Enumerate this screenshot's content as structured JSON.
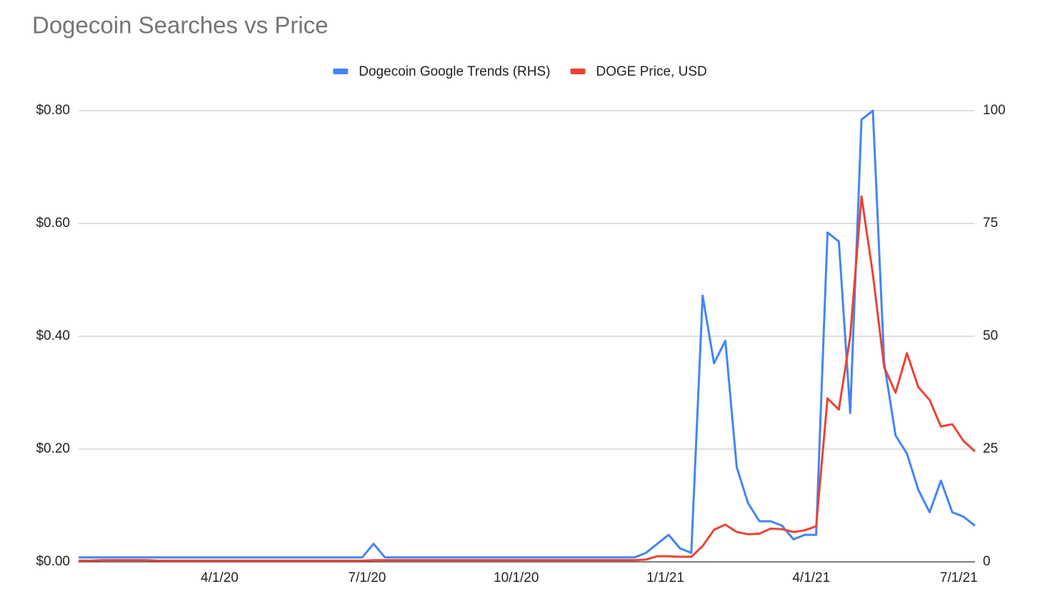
{
  "chart_data": {
    "type": "line",
    "title": "Dogecoin Searches vs Price",
    "x": [
      "1/5/20",
      "1/12/20",
      "1/19/20",
      "1/26/20",
      "2/2/20",
      "2/9/20",
      "2/16/20",
      "2/23/20",
      "3/1/20",
      "3/8/20",
      "3/15/20",
      "3/22/20",
      "3/29/20",
      "4/5/20",
      "4/12/20",
      "4/19/20",
      "4/26/20",
      "5/3/20",
      "5/10/20",
      "5/17/20",
      "5/24/20",
      "5/31/20",
      "6/7/20",
      "6/14/20",
      "6/21/20",
      "6/28/20",
      "7/5/20",
      "7/12/20",
      "7/19/20",
      "7/26/20",
      "8/2/20",
      "8/9/20",
      "8/16/20",
      "8/23/20",
      "8/30/20",
      "9/6/20",
      "9/13/20",
      "9/20/20",
      "9/27/20",
      "10/4/20",
      "10/11/20",
      "10/18/20",
      "10/25/20",
      "11/1/20",
      "11/8/20",
      "11/15/20",
      "11/22/20",
      "11/29/20",
      "12/6/20",
      "12/13/20",
      "12/20/20",
      "12/27/20",
      "1/3/21",
      "1/10/21",
      "1/17/21",
      "1/24/21",
      "1/31/21",
      "2/7/21",
      "2/14/21",
      "2/21/21",
      "2/28/21",
      "3/7/21",
      "3/14/21",
      "3/21/21",
      "3/28/21",
      "4/4/21",
      "4/11/21",
      "4/18/21",
      "4/25/21",
      "5/2/21",
      "5/9/21",
      "5/16/21",
      "5/23/21",
      "5/30/21",
      "6/6/21",
      "6/13/21",
      "6/20/21",
      "6/27/21",
      "7/4/21",
      "7/11/21"
    ],
    "series": [
      {
        "name": "Dogecoin Google Trends (RHS)",
        "color": "#4285f4",
        "axis": "y2",
        "values": [
          1,
          1,
          1,
          1,
          1,
          1,
          1,
          1,
          1,
          1,
          1,
          1,
          1,
          1,
          1,
          1,
          1,
          1,
          1,
          1,
          1,
          1,
          1,
          1,
          1,
          1,
          4,
          1,
          1,
          1,
          1,
          1,
          1,
          1,
          1,
          1,
          1,
          1,
          1,
          1,
          1,
          1,
          1,
          1,
          1,
          1,
          1,
          1,
          1,
          1,
          2,
          4,
          6,
          3,
          2,
          59,
          44,
          49,
          21,
          13,
          9,
          9,
          8,
          5,
          6,
          6,
          73,
          71,
          33,
          98,
          100,
          44,
          28,
          24,
          16,
          11,
          18,
          11,
          10,
          8
        ]
      },
      {
        "name": "DOGE Price, USD",
        "color": "#ea4335",
        "values": [
          0.002,
          0.002,
          0.003,
          0.003,
          0.003,
          0.003,
          0.003,
          0.002,
          0.002,
          0.002,
          0.002,
          0.002,
          0.002,
          0.002,
          0.002,
          0.002,
          0.002,
          0.002,
          0.002,
          0.002,
          0.002,
          0.002,
          0.002,
          0.002,
          0.002,
          0.002,
          0.003,
          0.003,
          0.003,
          0.003,
          0.003,
          0.003,
          0.003,
          0.003,
          0.003,
          0.003,
          0.003,
          0.003,
          0.003,
          0.003,
          0.003,
          0.003,
          0.003,
          0.003,
          0.003,
          0.003,
          0.003,
          0.003,
          0.003,
          0.003,
          0.004,
          0.01,
          0.01,
          0.009,
          0.009,
          0.028,
          0.057,
          0.066,
          0.053,
          0.049,
          0.05,
          0.059,
          0.058,
          0.053,
          0.056,
          0.063,
          0.29,
          0.27,
          0.4,
          0.648,
          0.51,
          0.345,
          0.3,
          0.37,
          0.31,
          0.287,
          0.24,
          0.244,
          0.214,
          0.196
        ]
      }
    ],
    "xlim": [
      "1/5/20",
      "7/11/21"
    ],
    "xticks": [
      "4/1/20",
      "7/1/20",
      "10/1/20",
      "1/1/21",
      "4/1/21",
      "7/1/21"
    ],
    "ylim": [
      0,
      0.8
    ],
    "yticks": [
      {
        "value": 0,
        "label": "$0.00"
      },
      {
        "value": 0.2,
        "label": "$0.20"
      },
      {
        "value": 0.4,
        "label": "$0.40"
      },
      {
        "value": 0.6,
        "label": "$0.60"
      },
      {
        "value": 0.8,
        "label": "$0.80"
      }
    ],
    "y2lim": [
      0,
      100
    ],
    "y2ticks": [
      0,
      25,
      50,
      75,
      100
    ],
    "grid": true,
    "legend": "top"
  }
}
